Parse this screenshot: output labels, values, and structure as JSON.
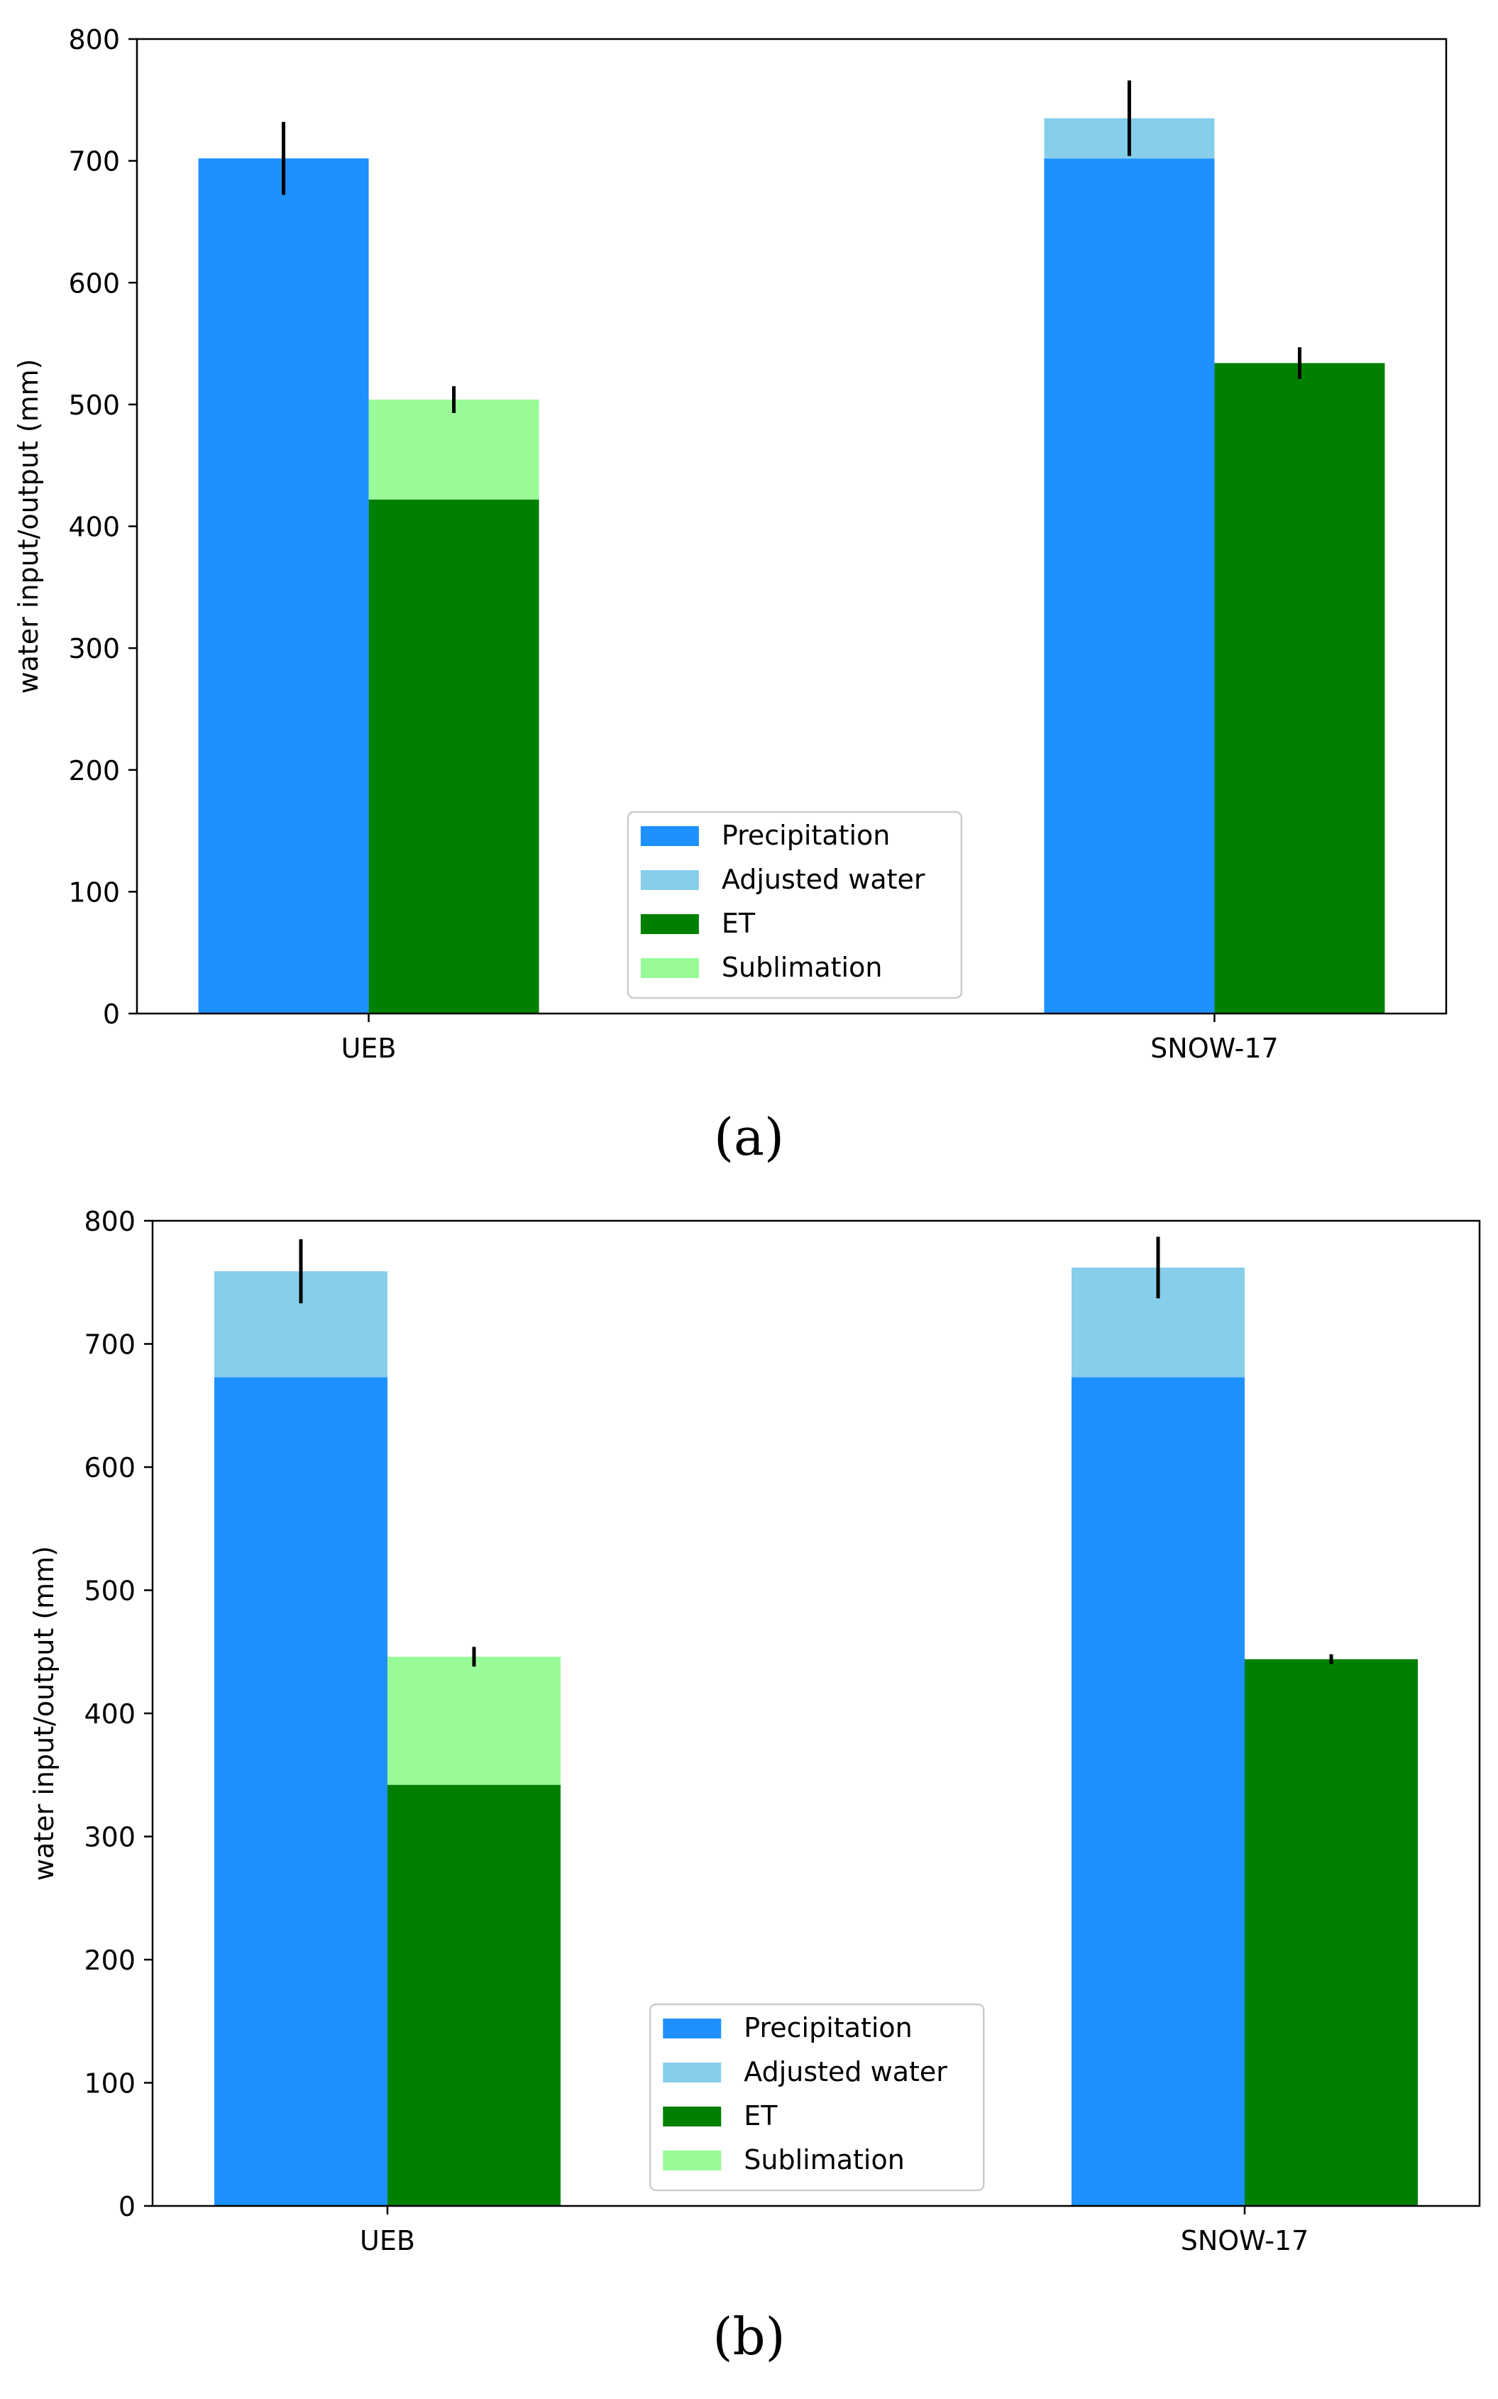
{
  "chart_data": [
    {
      "type": "bar",
      "panel_label": "a",
      "categories": [
        "UEB",
        "SNOW-17"
      ],
      "ylabel": "water input/output (mm)",
      "xlabel": "",
      "ylim": [
        0,
        800
      ],
      "yticks": [
        0,
        100,
        200,
        300,
        400,
        500,
        600,
        700,
        800
      ],
      "grid": false,
      "legend_position": "bottom-center",
      "stacks": [
        {
          "bar": "input",
          "series": [
            {
              "name": "Precipitation",
              "color": "#1E90FF",
              "values": [
                702,
                702
              ]
            },
            {
              "name": "Adjusted water",
              "color": "#87CEEB",
              "values": [
                0,
                33
              ]
            }
          ],
          "error": [
            30,
            31
          ]
        },
        {
          "bar": "output",
          "series": [
            {
              "name": "ET",
              "color": "#008000",
              "values": [
                422,
                534
              ]
            },
            {
              "name": "Sublimation",
              "color": "#98FB98",
              "values": [
                82,
                0
              ]
            }
          ],
          "error": [
            11,
            13
          ]
        }
      ]
    },
    {
      "type": "bar",
      "panel_label": "b",
      "categories": [
        "UEB",
        "SNOW-17"
      ],
      "ylabel": "water input/output (mm)",
      "xlabel": "",
      "ylim": [
        0,
        800
      ],
      "yticks": [
        0,
        100,
        200,
        300,
        400,
        500,
        600,
        700,
        800
      ],
      "grid": false,
      "legend_position": "bottom-center",
      "stacks": [
        {
          "bar": "input",
          "series": [
            {
              "name": "Precipitation",
              "color": "#1E90FF",
              "values": [
                673,
                673
              ]
            },
            {
              "name": "Adjusted water",
              "color": "#87CEEB",
              "values": [
                86,
                89
              ]
            }
          ],
          "error": [
            26,
            25
          ]
        },
        {
          "bar": "output",
          "series": [
            {
              "name": "ET",
              "color": "#008000",
              "values": [
                342,
                444
              ]
            },
            {
              "name": "Sublimation",
              "color": "#98FB98",
              "values": [
                104,
                0
              ]
            }
          ],
          "error": [
            8,
            4
          ]
        }
      ]
    }
  ],
  "legend": {
    "items": [
      {
        "name": "Precipitation",
        "color": "#1E90FF"
      },
      {
        "name": "Adjusted water",
        "color": "#87CEEB"
      },
      {
        "name": "ET",
        "color": "#008000"
      },
      {
        "name": "Sublimation",
        "color": "#98FB98"
      }
    ]
  },
  "captions": {
    "a": "(a)",
    "b": "(b)"
  }
}
